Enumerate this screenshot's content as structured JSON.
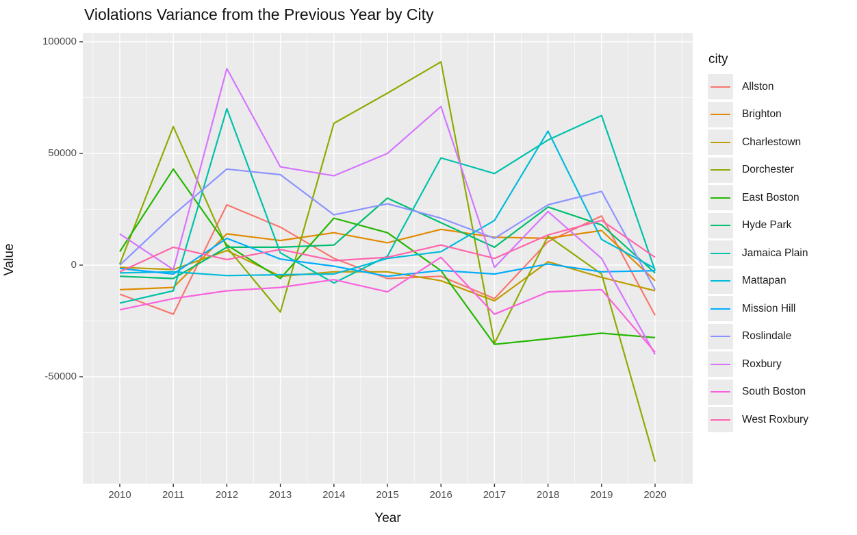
{
  "figure": {
    "title": "Violations Variance from the Previous Year by City",
    "legend_title": "city",
    "xlabel": "Year",
    "ylabel": "Value"
  },
  "chart_data": {
    "type": "line",
    "title": "Violations Variance from the Previous Year by City",
    "xlabel": "Year",
    "ylabel": "Value",
    "legend_title": "city",
    "legend_position": "right",
    "grid": "white major and minor gridlines on gray panel",
    "panel_bg": "#EBEBEB",
    "tick_label_color": "#4D4D4D",
    "x": [
      2010,
      2011,
      2012,
      2013,
      2014,
      2015,
      2016,
      2017,
      2018,
      2019,
      2020
    ],
    "xlim": [
      2009.3,
      2020.7
    ],
    "ylim": [
      -97500,
      103500
    ],
    "yticks": [
      100000,
      50000,
      0,
      -50000
    ],
    "ytick_labels": [
      "100000",
      "50000",
      "0",
      "-50000"
    ],
    "yticks_minor": [
      75000,
      25000,
      -25000,
      -75000
    ],
    "series": [
      {
        "name": "Allston",
        "color": "#F8766D",
        "values": [
          -13000,
          -22000,
          27000,
          17000,
          3000,
          -6000,
          -5000,
          -15000,
          10500,
          22000,
          -22500
        ]
      },
      {
        "name": "Brighton",
        "color": "#E18A00",
        "values": [
          -11000,
          -10000,
          14000,
          11000,
          14500,
          10000,
          16000,
          12500,
          12000,
          15500,
          -7000
        ]
      },
      {
        "name": "Charlestown",
        "color": "#BE9C00",
        "values": [
          -1000,
          -2000,
          6500,
          -5000,
          -3000,
          -3000,
          -7000,
          -16000,
          1500,
          -5500,
          -11500
        ]
      },
      {
        "name": "Dorchester",
        "color": "#8CAB00",
        "values": [
          500,
          62000,
          8000,
          -21000,
          63500,
          77000,
          91000,
          -35000,
          13000,
          -4000,
          -88000
        ]
      },
      {
        "name": "East Boston",
        "color": "#24B700",
        "values": [
          6000,
          43000,
          9000,
          -6000,
          21000,
          14500,
          -2500,
          -35500,
          -33000,
          -30500,
          -32500
        ]
      },
      {
        "name": "Hyde Park",
        "color": "#00BE70",
        "values": [
          -5000,
          -6000,
          8000,
          8000,
          9000,
          30000,
          19000,
          8000,
          26000,
          18000,
          -3500
        ]
      },
      {
        "name": "Jamaica Plain",
        "color": "#00C1AB",
        "values": [
          -17000,
          -11500,
          70000,
          5500,
          -8000,
          4000,
          48000,
          41000,
          56000,
          67000,
          -2500
        ]
      },
      {
        "name": "Mattapan",
        "color": "#00BBDA",
        "values": [
          -3500,
          -3000,
          -4700,
          -4300,
          -4000,
          3000,
          6000,
          20000,
          60000,
          11500,
          -1500
        ]
      },
      {
        "name": "Mission Hill",
        "color": "#00ACFC",
        "values": [
          -1500,
          -4000,
          12000,
          2700,
          -500,
          -5000,
          -2400,
          -4000,
          500,
          -3000,
          -2500
        ]
      },
      {
        "name": "Roslindale",
        "color": "#8B93FF",
        "values": [
          0,
          22500,
          43000,
          40500,
          22500,
          27500,
          21000,
          12000,
          27000,
          33000,
          -11000
        ]
      },
      {
        "name": "Roxbury",
        "color": "#D575FE",
        "values": [
          14000,
          -2000,
          88000,
          44000,
          40000,
          50000,
          71000,
          -1000,
          24000,
          3000,
          -40000
        ]
      },
      {
        "name": "South Boston",
        "color": "#F962DD",
        "values": [
          -20000,
          -15000,
          -11500,
          -10000,
          -6500,
          -12000,
          3500,
          -22000,
          -12000,
          -11000,
          -39000
        ]
      },
      {
        "name": "West Roxbury",
        "color": "#FF65AC",
        "values": [
          -3000,
          8000,
          2500,
          7000,
          2000,
          3500,
          9000,
          3000,
          13500,
          20000,
          3500
        ]
      }
    ]
  }
}
